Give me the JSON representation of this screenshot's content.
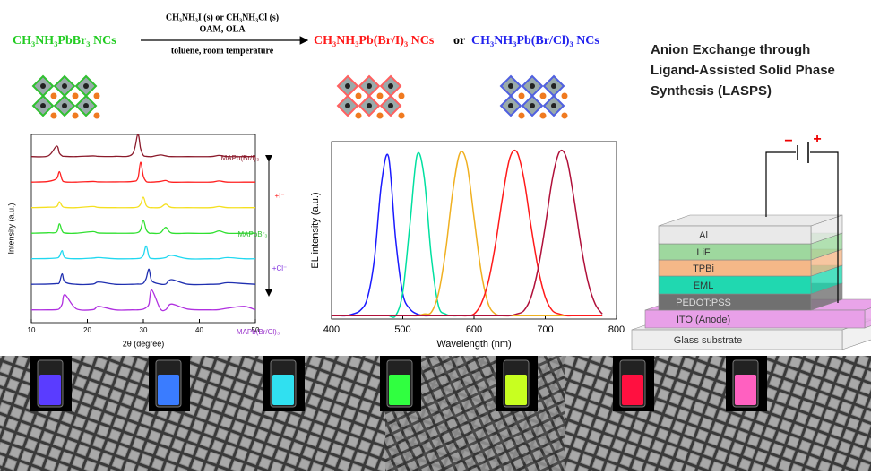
{
  "scheme": {
    "reactant": "CH₃NH₃PbBr₃ NCs",
    "reagents": [
      "CH₃NH₃I (s) or CH₃NH₃Cl (s)",
      "OAM, OLA"
    ],
    "conditions": "toluene, room temperature",
    "product_1": "CH₃NH₃Pb(Br/I)₃ NCs",
    "conjunction": "or",
    "product_2": "CH₃NH₃Pb(Br/Cl)₃ NCs"
  },
  "title": {
    "lines": [
      "Anion Exchange through",
      "Ligand-Assisted Solid Phase",
      "Synthesis (LASPS)"
    ]
  },
  "chart_data": [
    {
      "type": "line",
      "xlabel": "2θ (degree)",
      "ylabel": "Intensity (a.u.)",
      "xlim": [
        10,
        50
      ],
      "xticks": [
        10,
        20,
        30,
        40,
        50
      ],
      "annotations": [
        "MAPb(Br/I)₃",
        "+I⁻",
        "MAPbBr₃",
        "+Cl⁻",
        "MAPb(Br/Cl)₃"
      ],
      "x": [
        10,
        13,
        14.5,
        15,
        15.5,
        16,
        18,
        21,
        22,
        25,
        28,
        29,
        29.5,
        30,
        30.5,
        31,
        31.5,
        33,
        34,
        35,
        38,
        42,
        43.5,
        45,
        48,
        50
      ],
      "series": [
        {
          "color": "#8b1a2b",
          "values": [
            0.05,
            0.08,
            0.5,
            0.2,
            0.08,
            0.06,
            0.05,
            0.08,
            0.06,
            0.06,
            0.15,
            1.0,
            0.4,
            0.1,
            0.06,
            0.05,
            0.05,
            0.12,
            0.08,
            0.05,
            0.05,
            0.05,
            0.1,
            0.05,
            0.05,
            0.05
          ]
        },
        {
          "color": "#ff2020",
          "values": [
            0.05,
            0.08,
            0.2,
            0.5,
            0.15,
            0.06,
            0.05,
            0.08,
            0.06,
            0.06,
            0.08,
            0.2,
            0.9,
            0.3,
            0.08,
            0.05,
            0.05,
            0.08,
            0.12,
            0.05,
            0.05,
            0.05,
            0.1,
            0.05,
            0.05,
            0.05
          ]
        },
        {
          "color": "#f5e020",
          "values": [
            0.05,
            0.07,
            0.1,
            0.3,
            0.12,
            0.06,
            0.05,
            0.1,
            0.06,
            0.05,
            0.05,
            0.08,
            0.2,
            0.5,
            0.15,
            0.06,
            0.05,
            0.06,
            0.2,
            0.06,
            0.05,
            0.05,
            0.1,
            0.05,
            0.05,
            0.05
          ]
        },
        {
          "color": "#30e030",
          "values": [
            0.05,
            0.07,
            0.1,
            0.45,
            0.15,
            0.06,
            0.05,
            0.12,
            0.06,
            0.05,
            0.05,
            0.08,
            0.2,
            0.6,
            0.2,
            0.06,
            0.05,
            0.06,
            0.3,
            0.06,
            0.05,
            0.05,
            0.15,
            0.05,
            0.05,
            0.05
          ]
        },
        {
          "color": "#20d8f0",
          "values": [
            0.05,
            0.06,
            0.08,
            0.15,
            0.4,
            0.1,
            0.05,
            0.08,
            0.1,
            0.05,
            0.05,
            0.06,
            0.08,
            0.2,
            0.6,
            0.15,
            0.06,
            0.06,
            0.1,
            0.2,
            0.05,
            0.05,
            0.05,
            0.1,
            0.05,
            0.05
          ]
        },
        {
          "color": "#2030b0",
          "values": [
            0.05,
            0.06,
            0.08,
            0.12,
            0.5,
            0.15,
            0.05,
            0.06,
            0.15,
            0.05,
            0.05,
            0.06,
            0.06,
            0.1,
            0.3,
            0.7,
            0.2,
            0.06,
            0.06,
            0.25,
            0.05,
            0.05,
            0.06,
            0.12,
            0.08,
            0.05
          ]
        },
        {
          "color": "#b030e0",
          "values": [
            0.05,
            0.05,
            0.06,
            0.1,
            0.3,
            0.7,
            0.1,
            0.06,
            0.2,
            0.05,
            0.05,
            0.05,
            0.06,
            0.08,
            0.15,
            0.3,
            0.9,
            0.1,
            0.06,
            0.3,
            0.08,
            0.05,
            0.06,
            0.12,
            0.2,
            0.05
          ]
        }
      ]
    },
    {
      "type": "line",
      "xlabel": "Wavelength (nm)",
      "ylabel": "EL intensity (a.u.)",
      "xlim": [
        400,
        800
      ],
      "xticks": [
        400,
        500,
        600,
        700,
        800
      ],
      "ylim": [
        0,
        1.05
      ],
      "x": [
        400,
        410,
        420,
        430,
        440,
        450,
        460,
        470,
        480,
        490,
        500,
        510,
        520,
        530,
        540,
        550,
        560,
        570,
        580,
        590,
        600,
        610,
        620,
        630,
        640,
        650,
        660,
        670,
        680,
        690,
        700,
        710,
        720,
        730,
        740,
        750,
        760,
        770,
        780
      ],
      "series": [
        {
          "color": "#1a1aff",
          "values": [
            0.02,
            0.02,
            0.02,
            0.03,
            0.05,
            0.12,
            0.35,
            0.8,
            0.96,
            0.47,
            0.15,
            0.06,
            0.03,
            0.02,
            0.02,
            0.02,
            0.02,
            0.02,
            0.02,
            0.02,
            0.02,
            0.02,
            0.02,
            0.02,
            0.02,
            0.02,
            0.02,
            0.02,
            0.02,
            0.02,
            0.02,
            0.02,
            0.02,
            0.02,
            0.02,
            0.02,
            0.02,
            0.02,
            0.02
          ]
        },
        {
          "color": "#00e0a0",
          "values": [
            0.02,
            0.02,
            0.02,
            0.02,
            0.02,
            0.02,
            0.02,
            0.02,
            0.02,
            0.02,
            0.16,
            0.56,
            0.97,
            0.84,
            0.37,
            0.08,
            0.03,
            0.02,
            0.02,
            0.02,
            0.02,
            0.02,
            0.02,
            0.02,
            0.02,
            0.02,
            0.02,
            0.02,
            0.02,
            0.02,
            0.02,
            0.02,
            0.02,
            0.02,
            0.02,
            0.02,
            0.02,
            0.02,
            0.02
          ]
        },
        {
          "color": "#f0b020",
          "values": [
            0.02,
            0.02,
            0.02,
            0.02,
            0.02,
            0.02,
            0.02,
            0.02,
            0.02,
            0.02,
            0.02,
            0.02,
            0.02,
            0.03,
            0.04,
            0.15,
            0.4,
            0.75,
            0.98,
            0.92,
            0.6,
            0.28,
            0.09,
            0.03,
            0.02,
            0.02,
            0.02,
            0.02,
            0.02,
            0.02,
            0.02,
            0.02,
            0.02,
            0.02,
            0.02,
            0.02,
            0.02,
            0.02,
            0.02
          ]
        },
        {
          "color": "#ff1a1a",
          "values": [
            0.02,
            0.02,
            0.02,
            0.02,
            0.02,
            0.02,
            0.02,
            0.02,
            0.02,
            0.02,
            0.02,
            0.02,
            0.02,
            0.02,
            0.02,
            0.02,
            0.02,
            0.02,
            0.02,
            0.02,
            0.03,
            0.09,
            0.22,
            0.44,
            0.72,
            0.95,
            0.99,
            0.83,
            0.55,
            0.3,
            0.13,
            0.05,
            0.03,
            0.02,
            0.02,
            0.02,
            0.02,
            0.02,
            0.02
          ]
        },
        {
          "color": "#b0103a",
          "values": [
            0.02,
            0.02,
            0.02,
            0.02,
            0.02,
            0.02,
            0.02,
            0.02,
            0.02,
            0.02,
            0.02,
            0.02,
            0.02,
            0.02,
            0.02,
            0.02,
            0.02,
            0.02,
            0.02,
            0.02,
            0.02,
            0.02,
            0.02,
            0.02,
            0.02,
            0.02,
            0.03,
            0.05,
            0.13,
            0.3,
            0.55,
            0.83,
            0.99,
            0.95,
            0.72,
            0.44,
            0.22,
            0.09,
            0.03
          ]
        }
      ]
    }
  ],
  "device": {
    "layers": [
      "Al",
      "LiF",
      "TPBi",
      "EML",
      "PEDOT:PSS",
      "ITO (Anode)",
      "Glass substrate"
    ],
    "terminals": [
      "−",
      "+"
    ]
  }
}
